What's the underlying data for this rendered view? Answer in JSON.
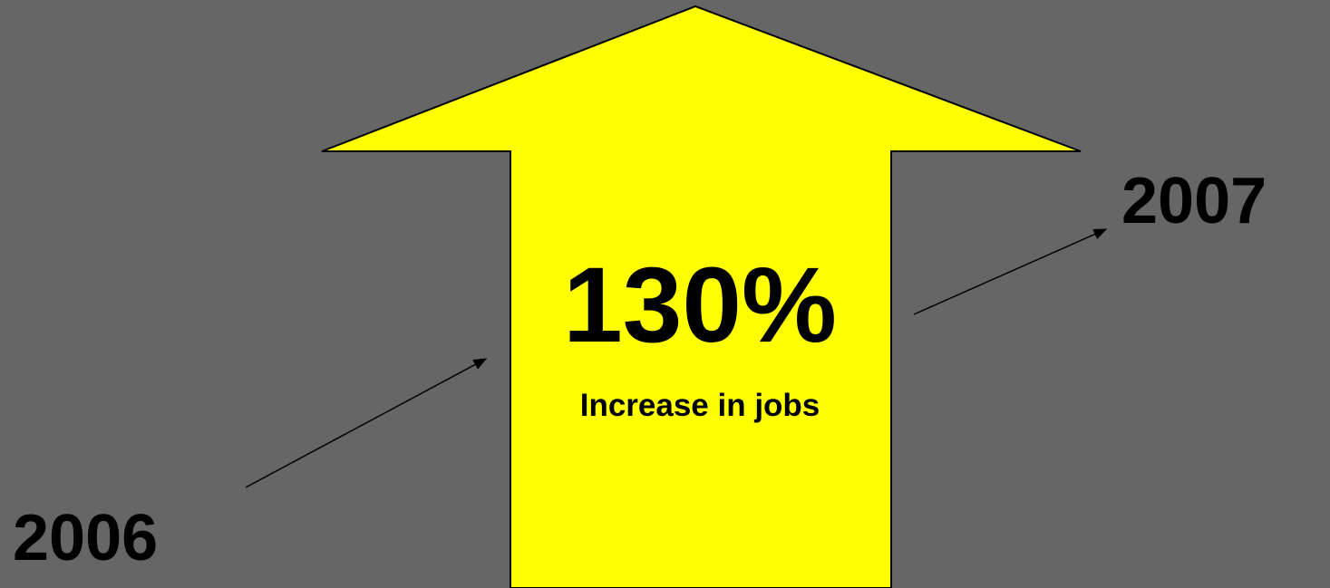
{
  "diagram": {
    "main_value": "130%",
    "main_caption": "Increase in jobs",
    "start_year": "2006",
    "end_year": "2007"
  },
  "colors": {
    "background": "#666666",
    "arrow_fill": "#FFFF00",
    "outline": "#000000",
    "text": "#000000"
  }
}
